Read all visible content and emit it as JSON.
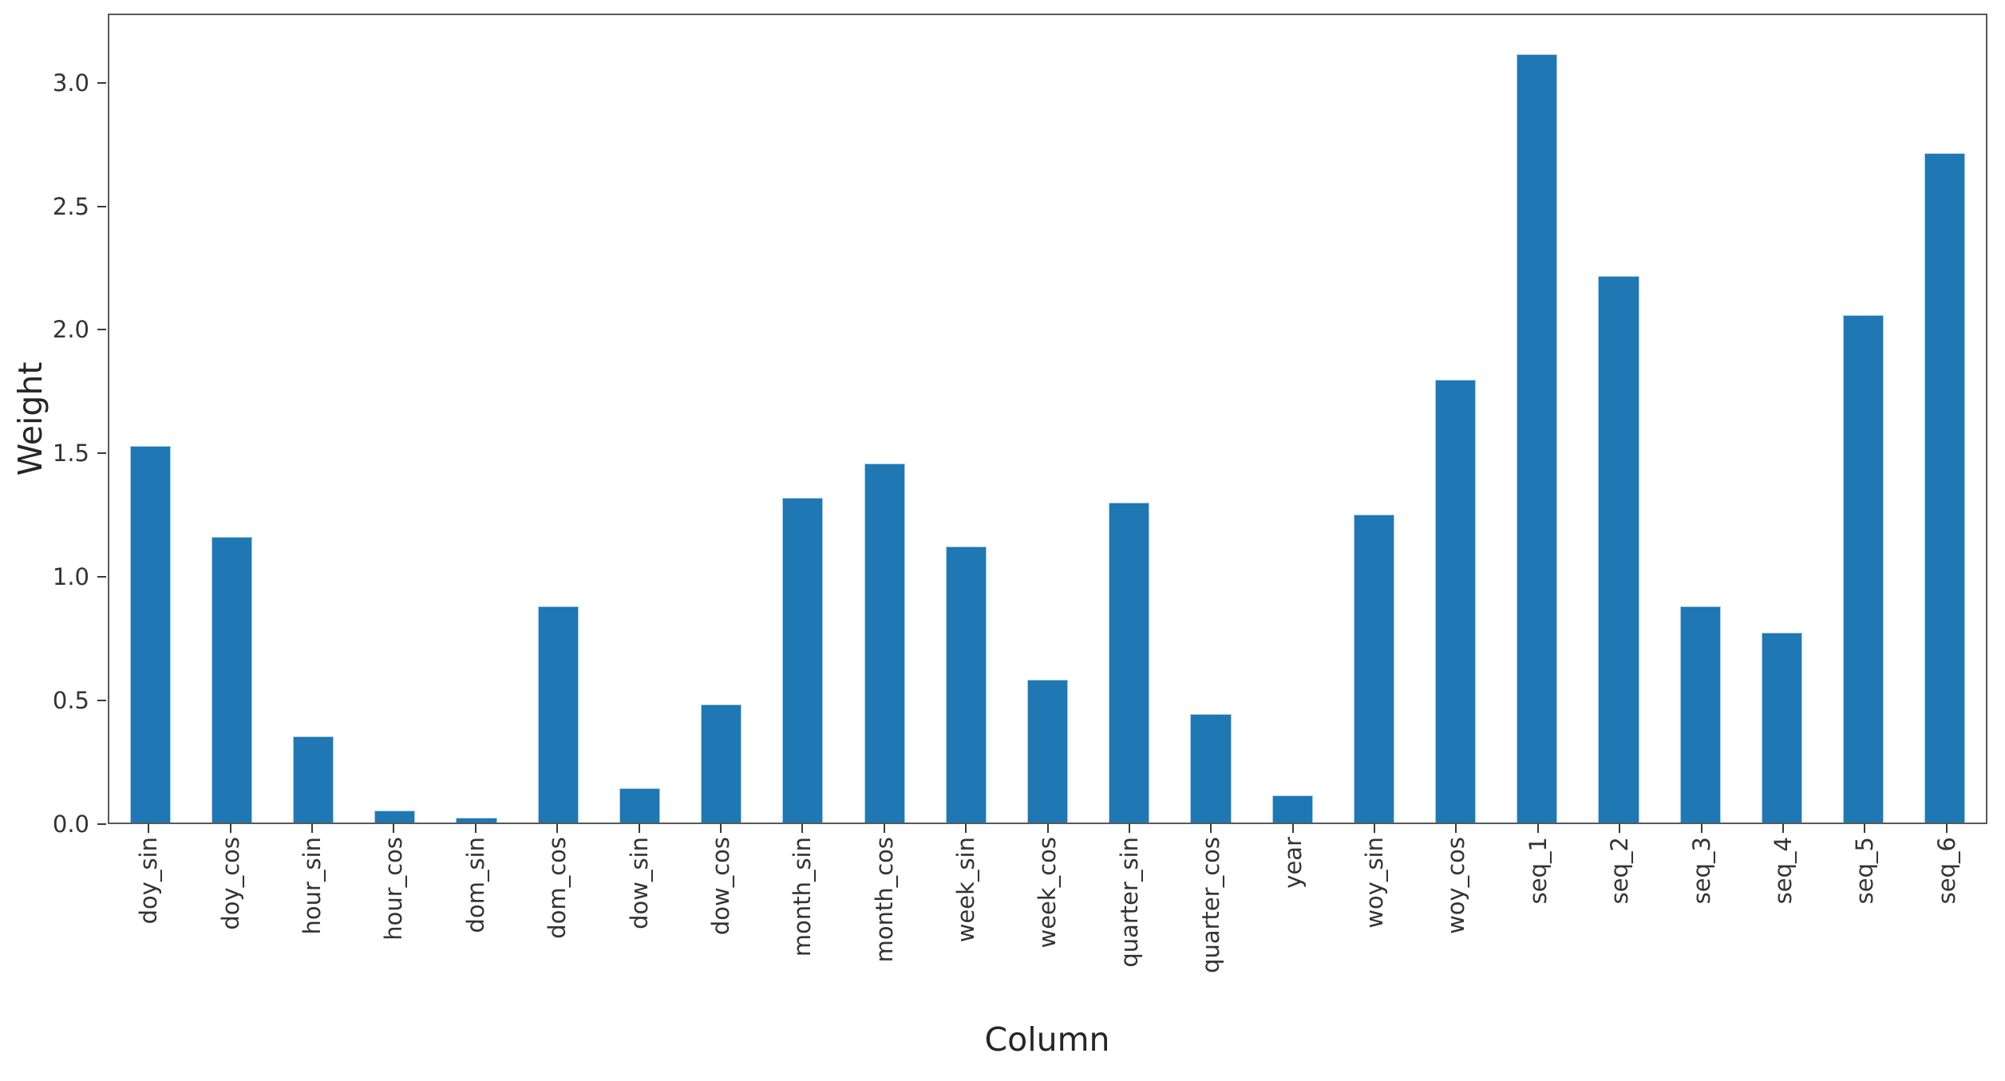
{
  "figure": {
    "xlabel": "Column",
    "ylabel": "Weight"
  },
  "chart_data": {
    "type": "bar",
    "title": "",
    "xlabel": "Column",
    "ylabel": "Weight",
    "categories": [
      "doy_sin",
      "doy_cos",
      "hour_sin",
      "hour_cos",
      "dom_sin",
      "dom_cos",
      "dow_sin",
      "dow_cos",
      "month_sin",
      "month_cos",
      "week_sin",
      "week_cos",
      "quarter_sin",
      "quarter_cos",
      "year",
      "woy_sin",
      "woy_cos",
      "seq_1",
      "seq_2",
      "seq_3",
      "seq_4",
      "seq_5",
      "seq_6"
    ],
    "values": [
      1.53,
      1.16,
      0.35,
      0.05,
      0.02,
      0.88,
      0.14,
      0.48,
      1.32,
      1.46,
      1.12,
      0.58,
      1.3,
      0.44,
      0.11,
      1.25,
      1.8,
      3.12,
      2.22,
      0.88,
      0.77,
      2.06,
      2.72
    ],
    "yticks": [
      0.0,
      0.5,
      1.0,
      1.5,
      2.0,
      2.5,
      3.0
    ],
    "ylim": [
      0,
      3.28
    ],
    "grid": false,
    "legend_position": "none",
    "bar_color": "#1f77b4",
    "bar_edge_color": "#c4dcee",
    "spine_color": "#595959",
    "tick_color": "#3a3a3a",
    "tick_text_color": "#333333",
    "label_text_color": "#262626"
  }
}
